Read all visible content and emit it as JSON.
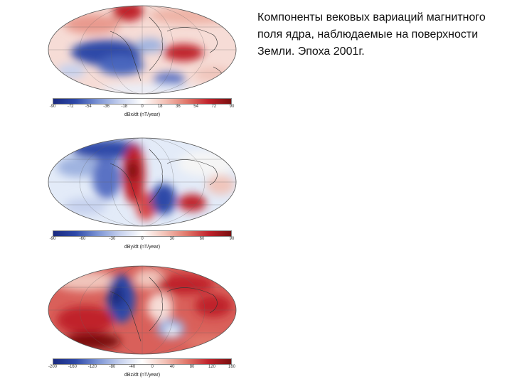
{
  "caption": "Компоненты вековых вариаций магнитного поля ядра, наблюдаемые на поверхности Земли. Эпоха 2001г.",
  "colors": {
    "red": "#c0222b",
    "deep_red": "#7a1010",
    "blue": "#2e49a8",
    "deep_blue": "#1a2a80",
    "white": "#ffffff"
  },
  "panels": [
    {
      "name": "dBx",
      "ticks": [
        "-90",
        "-72",
        "-54",
        "-36",
        "-18",
        "0",
        "18",
        "36",
        "54",
        "72",
        "90"
      ],
      "label": "dBx/dt (nT/year)"
    },
    {
      "name": "dBy",
      "ticks": [
        "-90",
        "-60",
        "-30",
        "0",
        "30",
        "60",
        "90"
      ],
      "label": "dBy/dt (nT/year)"
    },
    {
      "name": "dBz",
      "ticks": [
        "-200",
        "-160",
        "-120",
        "-80",
        "-40",
        "0",
        "40",
        "80",
        "120",
        "160"
      ],
      "label": "dBz/dt (nT/year)"
    }
  ]
}
